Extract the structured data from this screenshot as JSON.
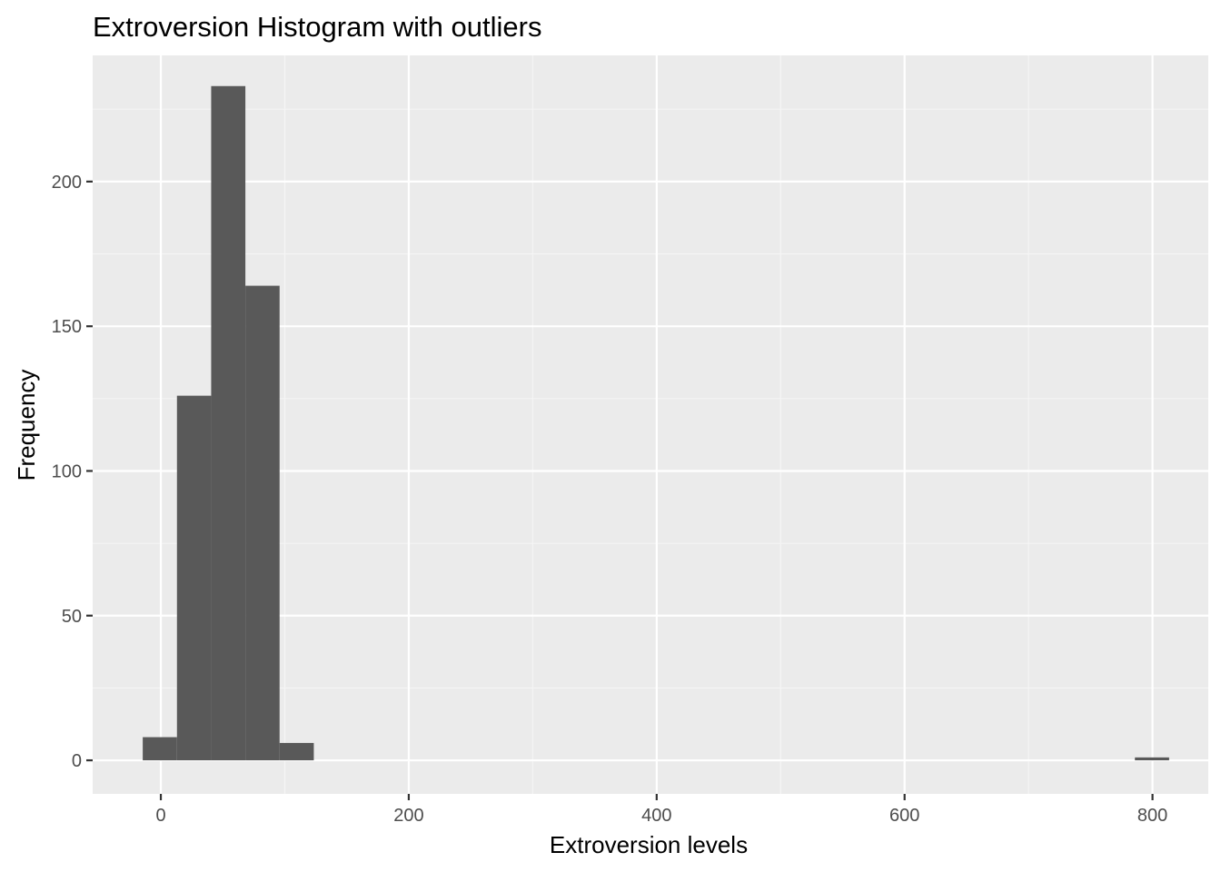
{
  "chart_data": {
    "type": "bar",
    "title": "Extroversion Histogram with outliers",
    "xlabel": "Extroversion levels",
    "ylabel": "Frequency",
    "xlim": [
      -55,
      845
    ],
    "ylim": [
      -11.6,
      243.6
    ],
    "x_ticks": [
      0,
      200,
      400,
      600,
      800
    ],
    "x_tick_labels": [
      "0",
      "200",
      "400",
      "600",
      "800"
    ],
    "x_minor_ticks": [
      100,
      300,
      500,
      700
    ],
    "y_ticks": [
      0,
      50,
      100,
      150,
      200
    ],
    "y_tick_labels": [
      "0",
      "50",
      "100",
      "150",
      "200"
    ],
    "y_minor_ticks": [
      25,
      75,
      125,
      175,
      225
    ],
    "bin_width": 27.6,
    "bins": [
      {
        "x_start": -14.6,
        "x_end": 13.0,
        "count": 8
      },
      {
        "x_start": 13.0,
        "x_end": 40.6,
        "count": 126
      },
      {
        "x_start": 40.6,
        "x_end": 68.2,
        "count": 233
      },
      {
        "x_start": 68.2,
        "x_end": 95.8,
        "count": 164
      },
      {
        "x_start": 95.8,
        "x_end": 123.4,
        "count": 6
      },
      {
        "x_start": 785.8,
        "x_end": 813.4,
        "count": 1
      }
    ],
    "grid": true,
    "colors": {
      "panel_background": "#ebebeb",
      "grid_major": "#ffffff",
      "grid_minor": "#f5f5f5",
      "bar_fill": "#595959",
      "tick_mark": "#333333"
    }
  }
}
